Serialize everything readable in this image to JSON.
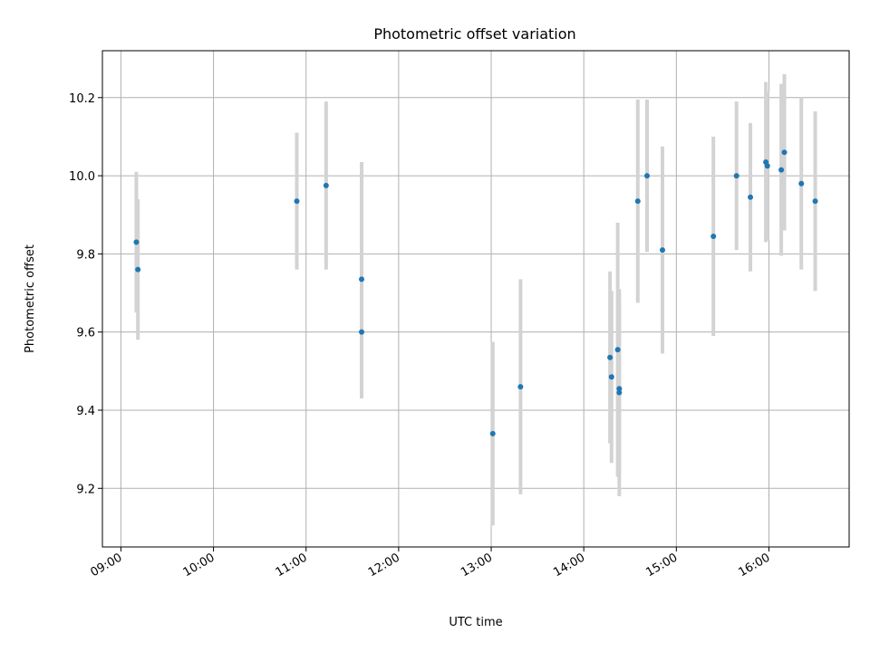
{
  "chart_data": {
    "type": "scatter",
    "title": "Photometric offset variation",
    "xlabel": "UTC time",
    "ylabel": "Photometric offset",
    "xlim": [
      "08:48",
      "16:52"
    ],
    "ylim": [
      9.05,
      10.32
    ],
    "xticks": [
      "09:00",
      "10:00",
      "11:00",
      "12:00",
      "13:00",
      "14:00",
      "15:00",
      "16:00"
    ],
    "yticks": [
      9.2,
      9.4,
      9.6,
      9.8,
      10.0,
      10.2
    ],
    "grid": true,
    "colors": {
      "points": "#1f77b4",
      "errorbars": "#d3d3d3"
    },
    "points": [
      {
        "x": "09:10",
        "y": 9.83,
        "yerr": 0.18
      },
      {
        "x": "09:11",
        "y": 9.76,
        "yerr": 0.18
      },
      {
        "x": "10:54",
        "y": 9.935,
        "yerr": 0.175
      },
      {
        "x": "11:13",
        "y": 9.975,
        "yerr": 0.215
      },
      {
        "x": "11:36",
        "y": 9.735,
        "yerr": 0.3
      },
      {
        "x": "11:36",
        "y": 9.6,
        "yerr": 0.17
      },
      {
        "x": "13:01",
        "y": 9.34,
        "yerr": 0.235
      },
      {
        "x": "13:19",
        "y": 9.46,
        "yerr": 0.275
      },
      {
        "x": "14:17",
        "y": 9.535,
        "yerr": 0.22
      },
      {
        "x": "14:18",
        "y": 9.485,
        "yerr": 0.22
      },
      {
        "x": "14:22",
        "y": 9.555,
        "yerr": 0.325
      },
      {
        "x": "14:23",
        "y": 9.455,
        "yerr": 0.225
      },
      {
        "x": "14:23",
        "y": 9.445,
        "yerr": 0.265
      },
      {
        "x": "14:35",
        "y": 9.935,
        "yerr": 0.26
      },
      {
        "x": "14:41",
        "y": 10.0,
        "yerr": 0.195
      },
      {
        "x": "14:51",
        "y": 9.81,
        "yerr": 0.265
      },
      {
        "x": "15:24",
        "y": 9.845,
        "yerr": 0.255
      },
      {
        "x": "15:39",
        "y": 10.0,
        "yerr": 0.19
      },
      {
        "x": "15:48",
        "y": 9.945,
        "yerr": 0.19
      },
      {
        "x": "15:58",
        "y": 10.035,
        "yerr": 0.205
      },
      {
        "x": "15:59",
        "y": 10.025,
        "yerr": 0.19
      },
      {
        "x": "16:08",
        "y": 10.015,
        "yerr": 0.22
      },
      {
        "x": "16:10",
        "y": 10.06,
        "yerr": 0.2
      },
      {
        "x": "16:21",
        "y": 9.98,
        "yerr": 0.22
      },
      {
        "x": "16:30",
        "y": 9.935,
        "yerr": 0.23
      }
    ]
  }
}
